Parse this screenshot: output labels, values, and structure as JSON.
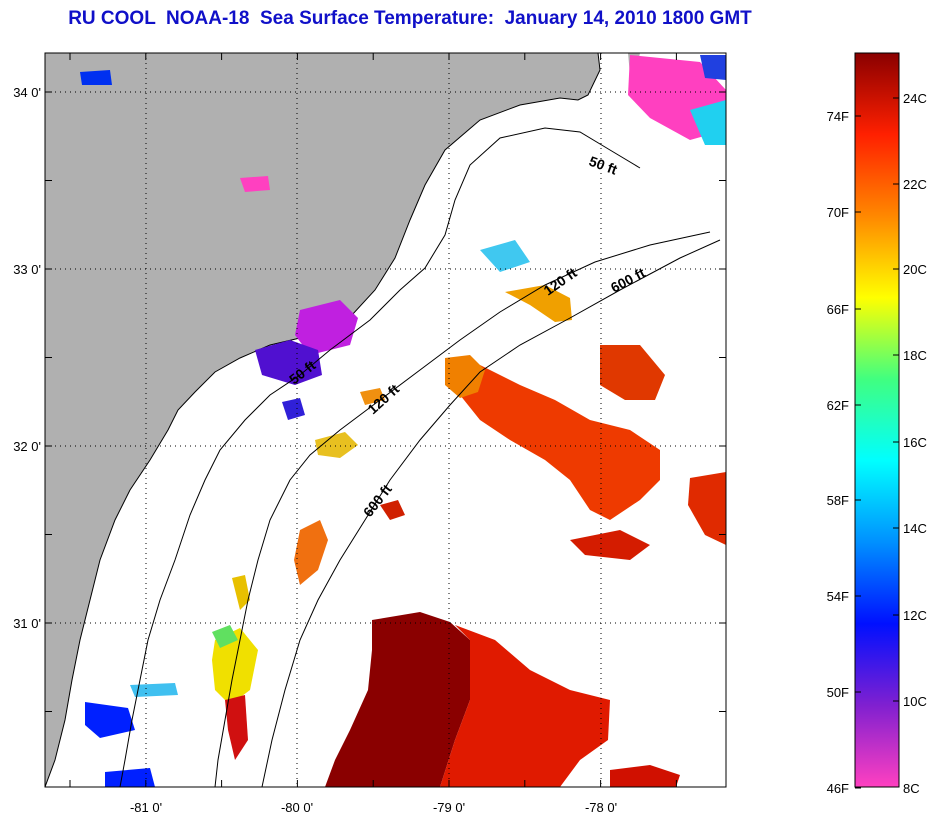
{
  "title": "RU COOL  NOAA-18  Sea Surface Temperature:  January 14, 2010 1800 GMT",
  "map": {
    "latitude_labels": [
      "34 0'",
      "33 0'",
      "32 0'",
      "31 0'"
    ],
    "longitude_labels": [
      "-81 0'",
      "-80 0'",
      "-79 0'",
      "-78 0'"
    ],
    "isobath_labels": [
      "50 ft",
      "120 ft",
      "600 ft",
      "50 ft",
      "120 ft",
      "600 ft"
    ],
    "colors": {
      "land": "#b0b0b0",
      "ocean_no_data": "#ffffff",
      "coastline": "#000000",
      "grid": "#000000"
    }
  },
  "colorbar": {
    "fahrenheit_labels": [
      "74F",
      "70F",
      "66F",
      "62F",
      "58F",
      "54F",
      "50F",
      "46F"
    ],
    "celsius_labels": [
      "24C",
      "22C",
      "20C",
      "18C",
      "16C",
      "14C",
      "12C",
      "10C",
      "8C"
    ],
    "color_stops": [
      "#ff40c0",
      "#8020d0",
      "#0010ff",
      "#0090ff",
      "#00ffff",
      "#40ff80",
      "#ffff00",
      "#ff8800",
      "#ff2000",
      "#8a0000"
    ]
  }
}
